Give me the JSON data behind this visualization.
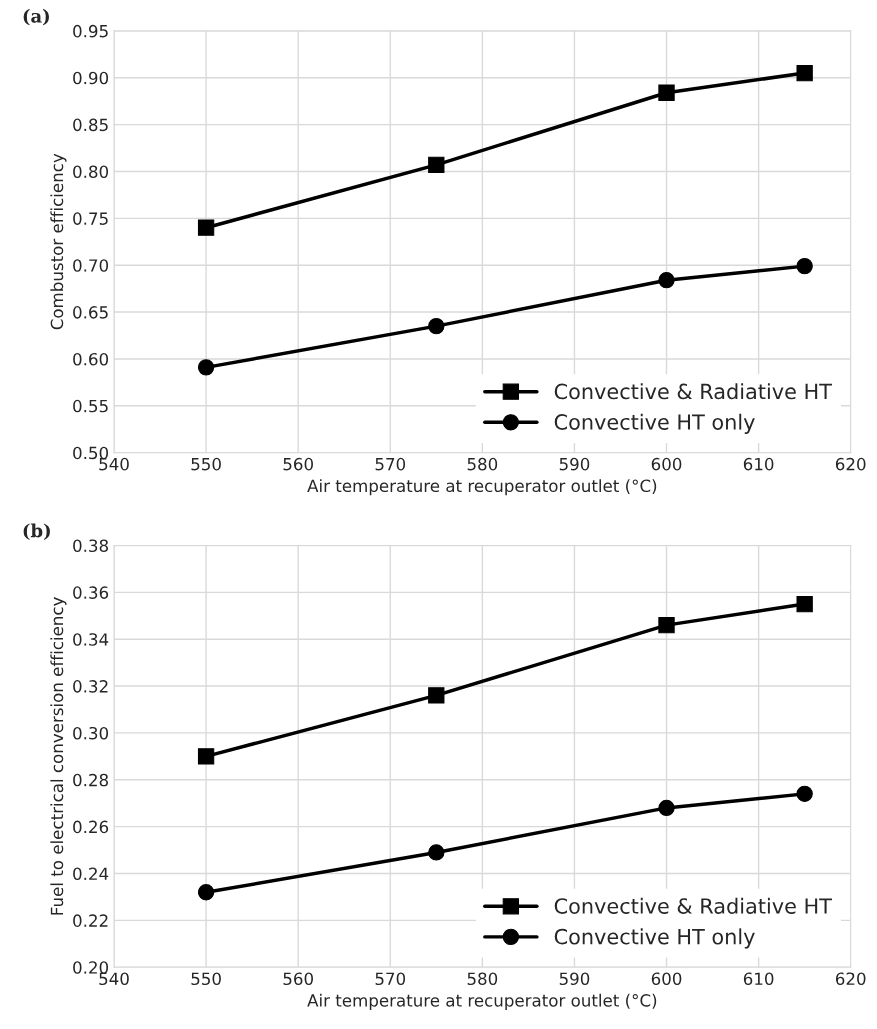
{
  "chart_data": [
    {
      "type": "line",
      "title": "(a)",
      "xlabel": "Air temperature at recuperator outlet (°C)",
      "ylabel": "Combustor efficiency",
      "x": [
        550,
        575,
        600,
        615
      ],
      "series": [
        {
          "name": "Convective & Radiative HT",
          "color": "#000000",
          "marker": "square",
          "values": [
            0.74,
            0.807,
            0.884,
            0.905
          ]
        },
        {
          "name": "Convective HT only",
          "color": "#000000",
          "marker": "circle",
          "values": [
            0.591,
            0.635,
            0.684,
            0.699
          ]
        }
      ],
      "xlim": [
        540,
        620
      ],
      "xticks": [
        540,
        550,
        560,
        570,
        580,
        590,
        600,
        610,
        620
      ],
      "ylim": [
        0.5,
        0.95
      ],
      "yticks": [
        {
          "value": 0.5,
          "label": "0.50"
        },
        {
          "value": 0.55,
          "label": "0.55"
        },
        {
          "value": 0.6,
          "label": "0.60"
        },
        {
          "value": 0.65,
          "label": "0.65"
        },
        {
          "value": 0.7,
          "label": "0.70"
        },
        {
          "value": 0.75,
          "label": "0.75"
        },
        {
          "value": 0.8,
          "label": "0.80"
        },
        {
          "value": 0.85,
          "label": "0.85"
        },
        {
          "value": 0.9,
          "label": "0.90"
        },
        {
          "value": 0.95,
          "label": "0.95"
        }
      ],
      "grid": true,
      "legend": "bottom right",
      "line_style": "solid"
    },
    {
      "type": "line",
      "title": "(b)",
      "xlabel": "Air temperature at recuperator outlet (°C)",
      "ylabel": "Fuel to electrical conversion efficiency",
      "x": [
        550,
        575,
        600,
        615
      ],
      "series": [
        {
          "name": "Convective & Radiative HT",
          "color": "#000000",
          "marker": "square",
          "values": [
            0.29,
            0.316,
            0.346,
            0.355
          ]
        },
        {
          "name": "Convective HT only",
          "color": "#000000",
          "marker": "circle",
          "values": [
            0.232,
            0.249,
            0.268,
            0.274
          ]
        }
      ],
      "xlim": [
        540,
        620
      ],
      "xticks": [
        540,
        550,
        560,
        570,
        580,
        590,
        600,
        610,
        620
      ],
      "ylim": [
        0.2,
        0.38
      ],
      "yticks": [
        {
          "value": 0.2,
          "label": "0.20"
        },
        {
          "value": 0.22,
          "label": "0.22"
        },
        {
          "value": 0.24,
          "label": "0.24"
        },
        {
          "value": 0.26,
          "label": "0.26"
        },
        {
          "value": 0.28,
          "label": "0.28"
        },
        {
          "value": 0.3,
          "label": "0.30"
        },
        {
          "value": 0.32,
          "label": "0.32"
        },
        {
          "value": 0.34,
          "label": "0.34"
        },
        {
          "value": 0.36,
          "label": "0.36"
        },
        {
          "value": 0.38,
          "label": "0.38"
        }
      ],
      "grid": true,
      "legend": "bottom right",
      "line_style": "solid"
    }
  ]
}
